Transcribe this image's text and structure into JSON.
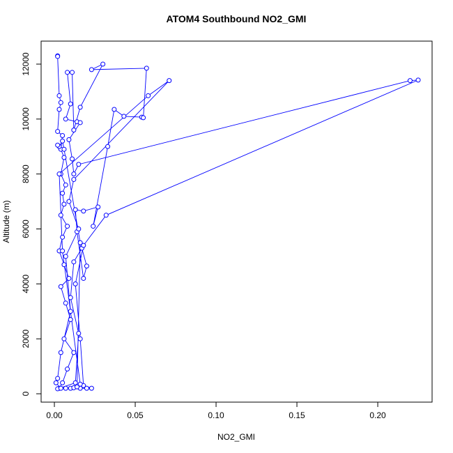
{
  "chart_data": {
    "type": "scatter",
    "title": "ATOM4 Southbound NO2_GMI",
    "x_label": "NO2_GMI",
    "y_label": "Altitude (m)",
    "series": [
      {
        "color": "#0000ff",
        "x": [
          0.002,
          0.002,
          0.003,
          0.004,
          0.003,
          0.002,
          0.005,
          0.004,
          0.006,
          0.004,
          0.007,
          0.005,
          0.006,
          0.004,
          0.008,
          0.005,
          0.003,
          0.006,
          0.009,
          0.004,
          0.007,
          0.01,
          0.006,
          0.012,
          0.008,
          0.005,
          0.003,
          0.002,
          0.013,
          0.015,
          0.01,
          0.012,
          0.017,
          0.02,
          0.018,
          0.014,
          0.013,
          0.018,
          0.027,
          0.024,
          0.033,
          0.037,
          0.043,
          0.054,
          0.055,
          0.057,
          0.023,
          0.03,
          0.016,
          0.012,
          0.011,
          0.008,
          0.01,
          0.007,
          0.014,
          0.016,
          0.009,
          0.011,
          0.012,
          0.015,
          0.22,
          0.225,
          0.032,
          0.018,
          0.013,
          0.016,
          0.018,
          0.016,
          0.02,
          0.023,
          0.016,
          0.005,
          0.003,
          0.058,
          0.071,
          0.012,
          0.009,
          0.015,
          0.007,
          0.01,
          0.004,
          0.002,
          0.001,
          0.004,
          0.007,
          0.01,
          0.012,
          0.014,
          0.016,
          0.006,
          0.005,
          0.003,
          0.002
        ],
        "values": [
          12300,
          12280,
          10850,
          10600,
          10350,
          9550,
          9400,
          8900,
          8600,
          8000,
          7600,
          7300,
          6900,
          6500,
          6100,
          5700,
          5200,
          4700,
          4200,
          3900,
          3300,
          2700,
          2000,
          1500,
          900,
          400,
          200,
          180,
          400,
          2200,
          3500,
          4800,
          5300,
          4650,
          4200,
          5900,
          6700,
          6650,
          6800,
          6100,
          9000,
          10350,
          10100,
          10070,
          10050,
          11850,
          11800,
          12000,
          10430,
          9600,
          11700,
          11700,
          10550,
          10000,
          9900,
          9870,
          9250,
          8550,
          8000,
          8350,
          11400,
          11420,
          6500,
          5400,
          4000,
          2000,
          300,
          200,
          200,
          200,
          350,
          5200,
          8000,
          10850,
          11400,
          7800,
          7000,
          6000,
          5000,
          3000,
          1500,
          560,
          400,
          200,
          200,
          200,
          220,
          250,
          5500,
          8900,
          9200,
          9000,
          9050
        ]
      }
    ],
    "xlim": [
      -0.0082,
      0.2336
    ],
    "ylim": [
      -304,
      12837
    ],
    "xticks": [
      {
        "value": 0,
        "label": "0.00"
      },
      {
        "value": 0.05,
        "label": "0.05"
      },
      {
        "value": 0.1,
        "label": "0.10"
      },
      {
        "value": 0.15,
        "label": "0.15"
      },
      {
        "value": 0.2,
        "label": "0.20"
      }
    ],
    "yticks": [
      0,
      2000,
      4000,
      6000,
      8000,
      10000,
      12000
    ]
  }
}
